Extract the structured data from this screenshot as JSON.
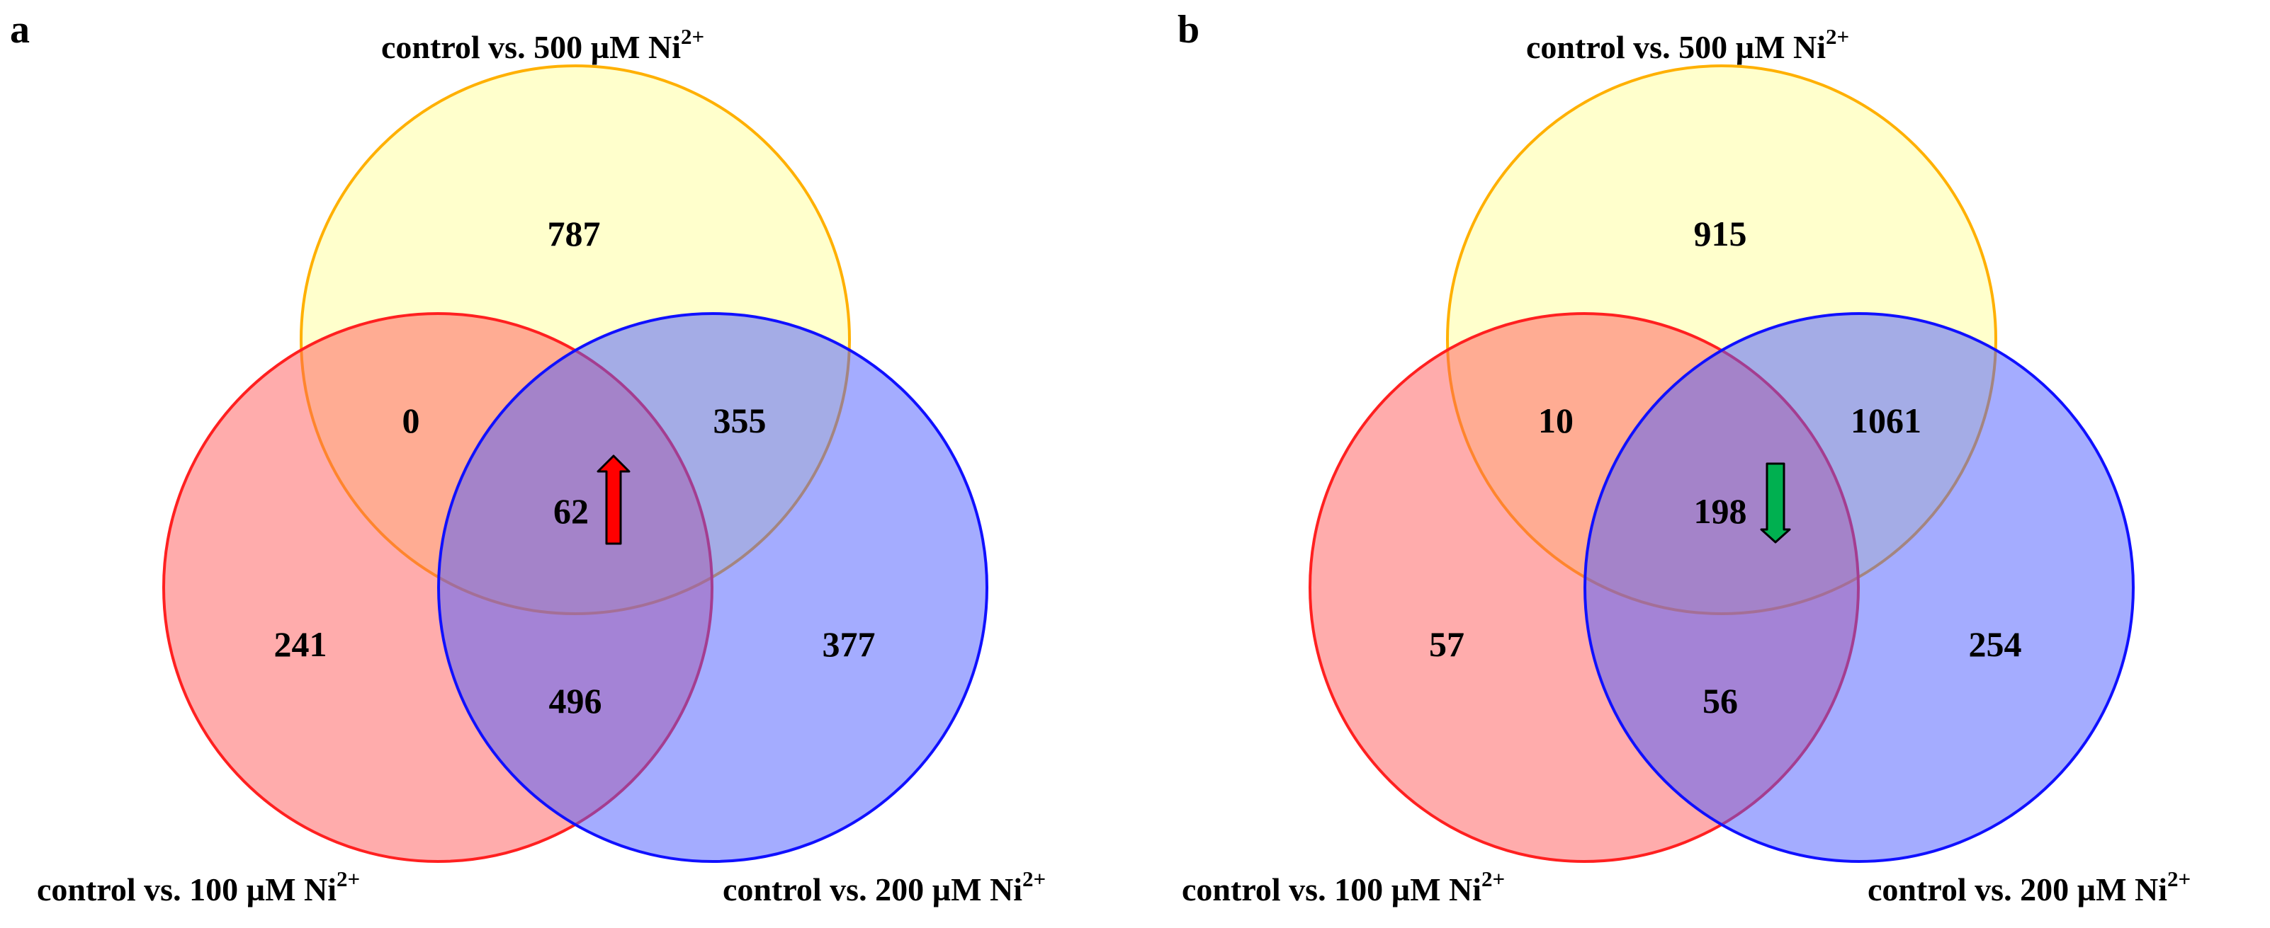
{
  "panels": [
    {
      "letter": "a",
      "sets": {
        "top": {
          "label": "control vs. 500 µM Ni",
          "sup": "2+"
        },
        "left": {
          "label": "control vs. 100 µM Ni",
          "sup": "2+"
        },
        "right": {
          "label": "control vs. 200 µM Ni",
          "sup": "2+"
        }
      },
      "counts": {
        "top_only": "787",
        "top_left": "0",
        "top_right": "355",
        "center": "62",
        "left_only": "241",
        "left_right": "496",
        "right_only": "377"
      },
      "arrow": {
        "direction": "up",
        "color": "#ff0000"
      }
    },
    {
      "letter": "b",
      "sets": {
        "top": {
          "label": "control vs. 500 µM Ni",
          "sup": "2+"
        },
        "left": {
          "label": "control vs. 100 µM Ni",
          "sup": "2+"
        },
        "right": {
          "label": "control vs. 200 µM Ni",
          "sup": "2+"
        }
      },
      "counts": {
        "top_only": "915",
        "top_left": "10",
        "top_right": "1061",
        "center": "198",
        "left_only": "57",
        "left_right": "56",
        "right_only": "254"
      },
      "arrow": {
        "direction": "down",
        "color": "#00b050"
      }
    }
  ],
  "colors": {
    "top_fill": "#ffff99",
    "top_stroke": "#ffb000",
    "left_fill": "#ff5a5a",
    "left_stroke": "#ff2020",
    "right_fill": "#4a5aff",
    "right_stroke": "#1010ff"
  }
}
